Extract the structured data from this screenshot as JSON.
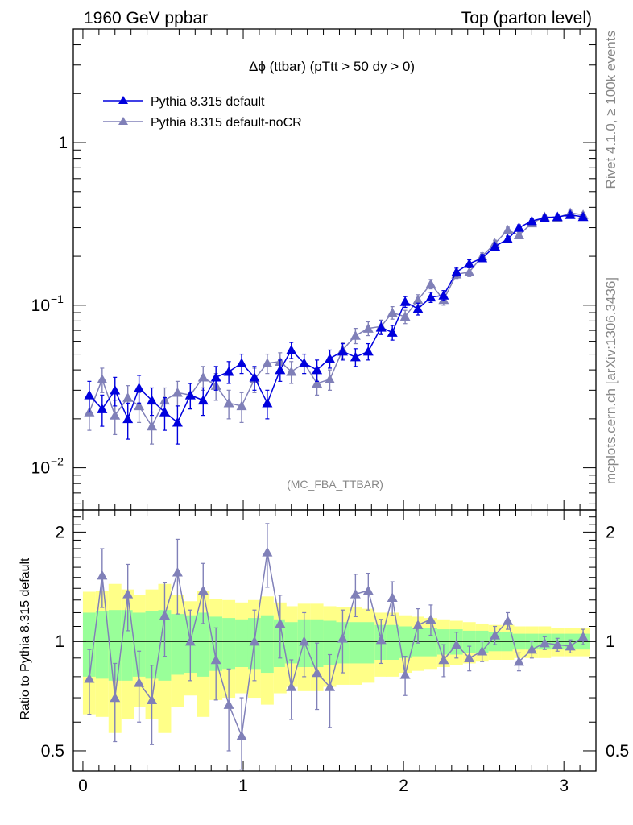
{
  "header": {
    "left": "1960 GeV ppbar",
    "right": "Top (parton level)"
  },
  "plot_title": "Δϕ (ttbar) (pTtt > 50 dy > 0)",
  "side_text": {
    "rivet": "Rivet 4.1.0, ≥ 100k events",
    "mcplots": "mcplots.cern.ch [arXiv:1306.3436]"
  },
  "analysis_id": "(MC_FBA_TTBAR)",
  "ratio_ylabel": "Ratio to Pythia 8.315 default",
  "colors": {
    "default": "#0000dd",
    "nocr": "#8080b8",
    "band_inner": "#99ff99",
    "band_outer": "#ffff88"
  },
  "chart_data": [
    {
      "type": "line",
      "yscale": "log",
      "xlim": [
        -0.06,
        3.2
      ],
      "ylim": [
        0.0055,
        5.0
      ],
      "yticks": [
        {
          "v": 1,
          "label": "1"
        },
        {
          "v": 0.1,
          "label": "10",
          "exp": "−1"
        },
        {
          "v": 0.01,
          "label": "10",
          "exp": "−2"
        }
      ],
      "legend_position": "top-left",
      "x": [
        0.04,
        0.12,
        0.2,
        0.28,
        0.35,
        0.43,
        0.51,
        0.59,
        0.67,
        0.75,
        0.83,
        0.91,
        0.99,
        1.07,
        1.15,
        1.23,
        1.3,
        1.38,
        1.46,
        1.54,
        1.62,
        1.7,
        1.78,
        1.86,
        1.93,
        2.01,
        2.09,
        2.17,
        2.25,
        2.33,
        2.41,
        2.49,
        2.57,
        2.65,
        2.72,
        2.8,
        2.88,
        2.96,
        3.04,
        3.12
      ],
      "series": [
        {
          "name": "Pythia 8.315 default",
          "values": [
            0.028,
            0.023,
            0.03,
            0.02,
            0.031,
            0.026,
            0.022,
            0.019,
            0.028,
            0.026,
            0.036,
            0.039,
            0.044,
            0.036,
            0.025,
            0.04,
            0.053,
            0.044,
            0.04,
            0.047,
            0.052,
            0.048,
            0.052,
            0.073,
            0.068,
            0.105,
            0.095,
            0.112,
            0.115,
            0.16,
            0.18,
            0.195,
            0.23,
            0.255,
            0.3,
            0.33,
            0.345,
            0.35,
            0.36,
            0.35
          ],
          "errors": [
            0.006,
            0.005,
            0.006,
            0.005,
            0.006,
            0.005,
            0.005,
            0.005,
            0.005,
            0.005,
            0.006,
            0.006,
            0.006,
            0.006,
            0.005,
            0.006,
            0.006,
            0.006,
            0.006,
            0.006,
            0.006,
            0.006,
            0.006,
            0.007,
            0.007,
            0.008,
            0.008,
            0.008,
            0.008,
            0.009,
            0.01,
            0.01,
            0.011,
            0.011,
            0.012,
            0.012,
            0.012,
            0.012,
            0.013,
            0.013
          ]
        },
        {
          "name": "Pythia 8.315 default-noCR",
          "values": [
            0.022,
            0.035,
            0.021,
            0.027,
            0.024,
            0.018,
            0.026,
            0.029,
            0.028,
            0.036,
            0.032,
            0.025,
            0.024,
            0.035,
            0.044,
            0.045,
            0.039,
            0.044,
            0.033,
            0.035,
            0.053,
            0.065,
            0.072,
            0.074,
            0.09,
            0.085,
            0.108,
            0.135,
            0.108,
            0.155,
            0.16,
            0.2,
            0.24,
            0.29,
            0.27,
            0.32,
            0.35,
            0.345,
            0.37,
            0.36
          ],
          "errors": [
            0.005,
            0.006,
            0.005,
            0.005,
            0.005,
            0.004,
            0.005,
            0.005,
            0.005,
            0.006,
            0.006,
            0.005,
            0.005,
            0.006,
            0.006,
            0.006,
            0.006,
            0.006,
            0.005,
            0.005,
            0.006,
            0.007,
            0.007,
            0.007,
            0.008,
            0.008,
            0.008,
            0.009,
            0.008,
            0.009,
            0.01,
            0.01,
            0.011,
            0.012,
            0.011,
            0.012,
            0.012,
            0.012,
            0.013,
            0.013
          ]
        }
      ]
    },
    {
      "type": "line",
      "yscale": "log",
      "xlim": [
        -0.06,
        3.2
      ],
      "ylim": [
        0.44,
        2.3
      ],
      "yticks": [
        {
          "v": 2,
          "label": "2"
        },
        {
          "v": 1,
          "label": "1"
        },
        {
          "v": 0.5,
          "label": "0.5"
        }
      ],
      "xticks": [
        0,
        1,
        2,
        3
      ],
      "ylabel": "Ratio to Pythia 8.315 default",
      "band_outer": [
        0.37,
        0.38,
        0.44,
        0.39,
        0.34,
        0.39,
        0.44,
        0.34,
        0.29,
        0.38,
        0.31,
        0.3,
        0.28,
        0.3,
        0.33,
        0.28,
        0.25,
        0.27,
        0.27,
        0.25,
        0.24,
        0.24,
        0.23,
        0.2,
        0.2,
        0.18,
        0.17,
        0.16,
        0.15,
        0.14,
        0.13,
        0.12,
        0.11,
        0.11,
        0.1,
        0.1,
        0.1,
        0.09,
        0.09,
        0.09
      ],
      "band_inner": [
        0.2,
        0.21,
        0.22,
        0.22,
        0.2,
        0.21,
        0.22,
        0.19,
        0.18,
        0.2,
        0.17,
        0.16,
        0.15,
        0.16,
        0.18,
        0.15,
        0.13,
        0.15,
        0.15,
        0.14,
        0.13,
        0.13,
        0.13,
        0.11,
        0.11,
        0.1,
        0.09,
        0.09,
        0.08,
        0.08,
        0.07,
        0.07,
        0.06,
        0.06,
        0.05,
        0.05,
        0.05,
        0.05,
        0.05,
        0.05
      ],
      "series": [
        {
          "name": "Pythia 8.315 default-noCR",
          "values": [
            0.79,
            1.52,
            0.7,
            1.35,
            0.77,
            0.69,
            1.18,
            1.55,
            1.0,
            1.38,
            0.89,
            0.67,
            0.55,
            1.0,
            1.76,
            1.12,
            0.75,
            1.0,
            0.82,
            0.75,
            1.02,
            1.35,
            1.38,
            1.01,
            1.32,
            0.81,
            1.11,
            1.15,
            0.89,
            0.98,
            0.9,
            0.94,
            1.04,
            1.14,
            0.88,
            0.95,
            0.99,
            0.98,
            0.97,
            1.03
          ],
          "errors": [
            0.16,
            0.28,
            0.17,
            0.28,
            0.17,
            0.17,
            0.27,
            0.36,
            0.22,
            0.26,
            0.2,
            0.17,
            0.15,
            0.22,
            0.35,
            0.22,
            0.14,
            0.2,
            0.17,
            0.17,
            0.2,
            0.18,
            0.16,
            0.14,
            0.14,
            0.1,
            0.12,
            0.11,
            0.09,
            0.08,
            0.07,
            0.06,
            0.06,
            0.06,
            0.05,
            0.05,
            0.04,
            0.04,
            0.04,
            0.05
          ]
        }
      ]
    }
  ]
}
